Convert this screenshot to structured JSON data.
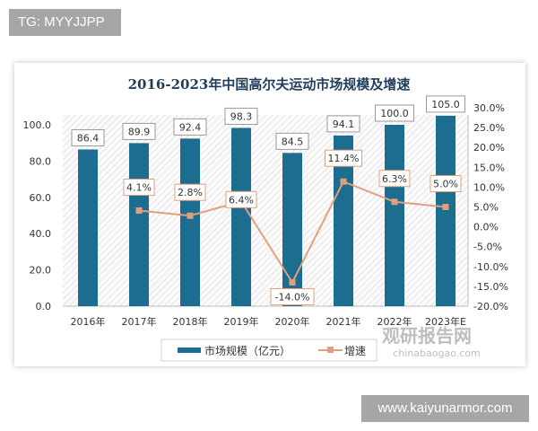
{
  "badge": "TG: MYYJJPP",
  "footer": "www.kaiyunarmor.com",
  "watermark": {
    "cn": "观研报告网",
    "url": "chinabaogao.com"
  },
  "chart_data": {
    "type": "bar+line",
    "title": "2016-2023年中国高尔夫运动市场规模及增速",
    "categories": [
      "2016年",
      "2017年",
      "2018年",
      "2019年",
      "2020年",
      "2021年",
      "2022年",
      "2023年E"
    ],
    "series": [
      {
        "name": "市场规模（亿元）",
        "type": "bar",
        "axis": "left",
        "color": "#1c6d8f",
        "values": [
          86.4,
          89.9,
          92.4,
          98.3,
          84.5,
          94.1,
          100.0,
          105.0
        ],
        "labels": [
          "86.4",
          "89.9",
          "92.4",
          "98.3",
          "84.5",
          "94.1",
          "100.0",
          "105.0"
        ]
      },
      {
        "name": "增速",
        "type": "line",
        "axis": "right",
        "color": "#e0a080",
        "values": [
          null,
          4.1,
          2.8,
          6.4,
          -14.0,
          11.4,
          6.3,
          5.0
        ],
        "labels": [
          "",
          "4.1%",
          "2.8%",
          "6.4%",
          "-14.0%",
          "11.4%",
          "6.3%",
          "5.0%"
        ]
      }
    ],
    "y_left": {
      "range": [
        0,
        100
      ],
      "ticks": [
        "0.0",
        "20.0",
        "40.0",
        "60.0",
        "80.0",
        "100.0"
      ]
    },
    "y_right": {
      "range": [
        -20,
        30
      ],
      "ticks": [
        "-20.0%",
        "-15.0%",
        "-10.0%",
        "-5.0%",
        "0.0%",
        "5.0%",
        "10.0%",
        "15.0%",
        "20.0%",
        "25.0%",
        "30.0%"
      ]
    },
    "legend": "bottom"
  }
}
